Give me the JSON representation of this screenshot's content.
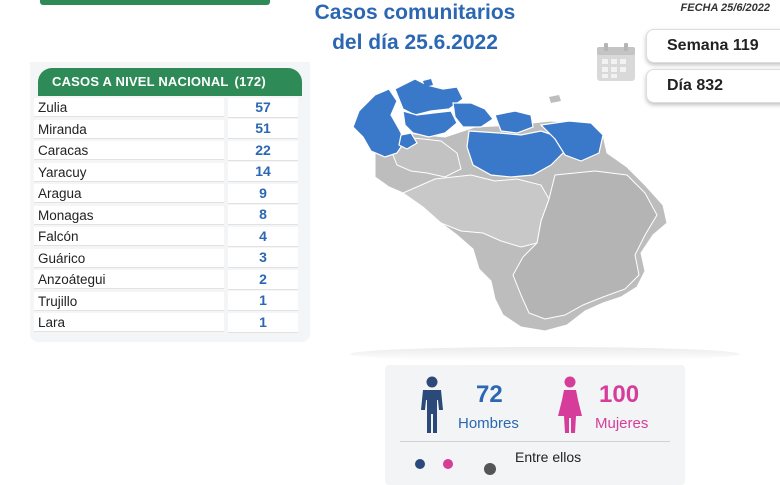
{
  "header": {
    "title_line1": "Casos comunitarios",
    "title_line2": "del día 25.6.2022",
    "fecha": "FECHA 25/6/2022"
  },
  "stats": {
    "semana": "Semana 119",
    "dia": "Día 832"
  },
  "national": {
    "header_label": "CASOS A NIVEL NACIONAL",
    "total": "(172)",
    "rows": [
      {
        "state": "Zulia",
        "cases": "57"
      },
      {
        "state": "Miranda",
        "cases": "51"
      },
      {
        "state": "Caracas",
        "cases": "22"
      },
      {
        "state": "Yaracuy",
        "cases": "14"
      },
      {
        "state": "Aragua",
        "cases": "9"
      },
      {
        "state": "Monagas",
        "cases": "8"
      },
      {
        "state": "Falcón",
        "cases": "4"
      },
      {
        "state": "Guárico",
        "cases": "3"
      },
      {
        "state": "Anzoátegui",
        "cases": "2"
      },
      {
        "state": "Trujillo",
        "cases": "1"
      },
      {
        "state": "Lara",
        "cases": "1"
      }
    ]
  },
  "gender": {
    "men_count": "72",
    "men_label": "Hombres",
    "women_count": "100",
    "women_label": "Mujeres",
    "footer_text": "Entre ellos"
  },
  "colors": {
    "accent_blue": "#2b67b3",
    "header_green": "#2e8b57",
    "women_pink": "#d63d9b",
    "map_highlight": "#3a78c9",
    "map_base": "#bdbdbd"
  },
  "icons": {
    "calendar": "calendar-icon",
    "man": "man-icon",
    "woman": "woman-icon"
  }
}
